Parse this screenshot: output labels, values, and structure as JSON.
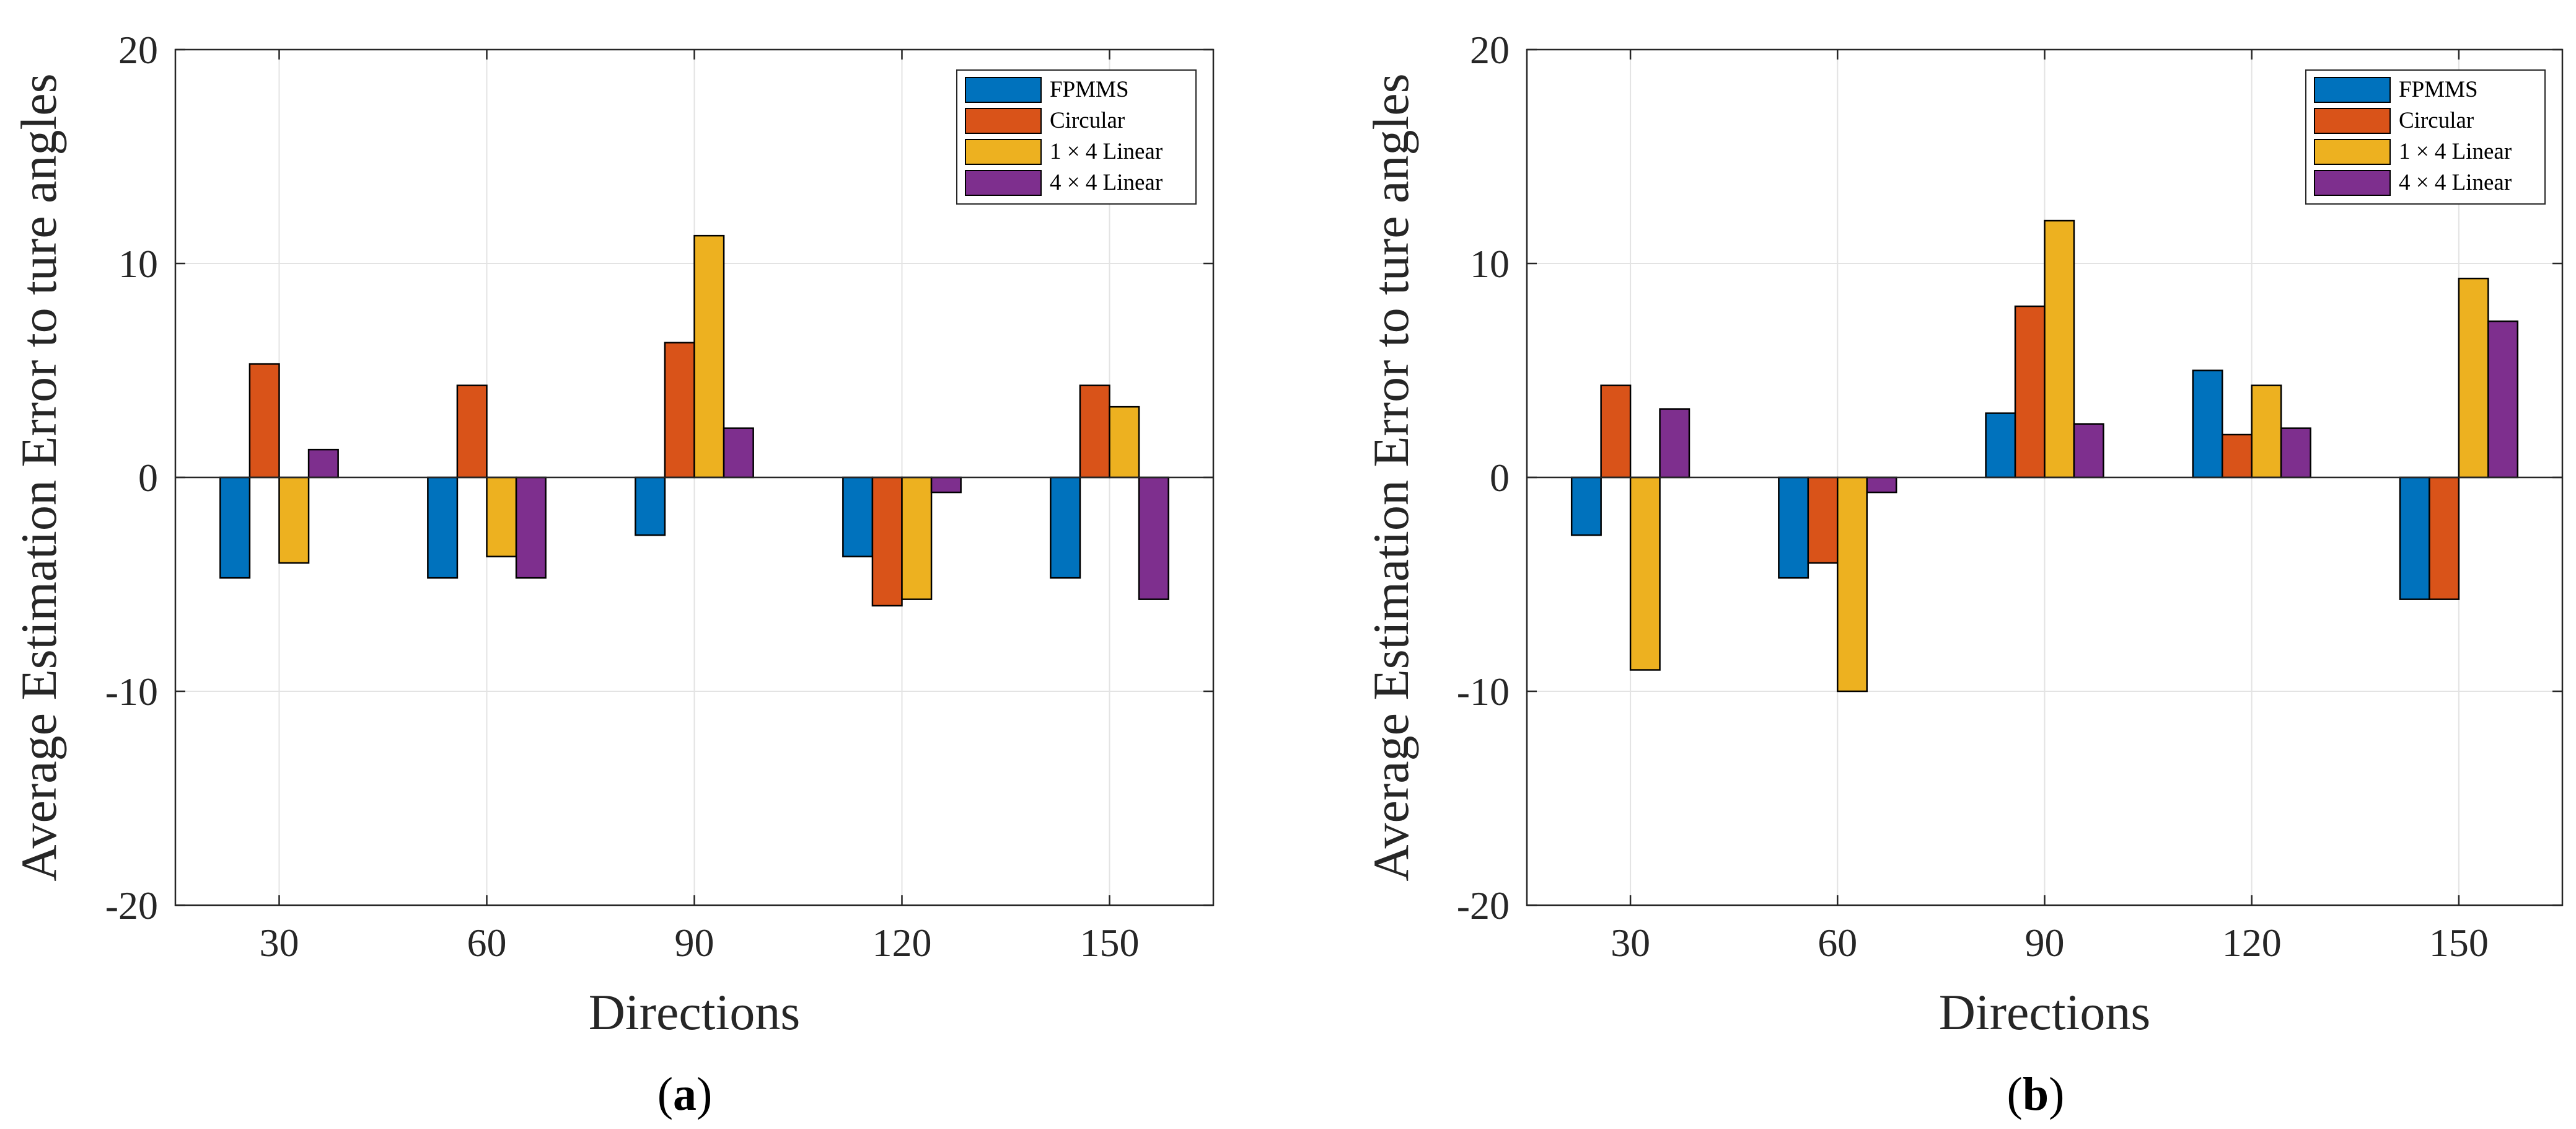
{
  "figure_caption_labels": [
    "a",
    "b"
  ],
  "chart_data": [
    {
      "type": "bar",
      "panel": "a",
      "xlabel": "Directions",
      "ylabel": "Average Estimation Error to ture angles",
      "categories": [
        "30",
        "60",
        "90",
        "120",
        "150"
      ],
      "ylim": [
        -20,
        20
      ],
      "yticks": [
        -20,
        -10,
        0,
        10,
        20
      ],
      "yticklabels": [
        "-20",
        "-10",
        "0",
        "10",
        "20"
      ],
      "grid": true,
      "legend_position": "top-right",
      "series": [
        {
          "name": "FPMMS",
          "color": "#0072BD",
          "values": [
            -4.7,
            -4.7,
            -2.7,
            -3.7,
            -4.7
          ]
        },
        {
          "name": "Circular",
          "color": "#D95319",
          "values": [
            5.3,
            4.3,
            6.3,
            -6.0,
            4.3
          ]
        },
        {
          "name": "1 × 4 Linear",
          "color": "#EDB120",
          "values": [
            -4.0,
            -3.7,
            11.3,
            -5.7,
            3.3
          ]
        },
        {
          "name": "4 × 4 Linear",
          "color": "#7E2F8E",
          "values": [
            1.3,
            -4.7,
            2.3,
            -0.7,
            -5.7
          ]
        }
      ]
    },
    {
      "type": "bar",
      "panel": "b",
      "xlabel": "Directions",
      "ylabel": "Average Estimation Error to ture angles",
      "categories": [
        "30",
        "60",
        "90",
        "120",
        "150"
      ],
      "ylim": [
        -20,
        20
      ],
      "yticks": [
        -20,
        -10,
        0,
        10,
        20
      ],
      "yticklabels": [
        "-20",
        "-10",
        "0",
        "10",
        "20"
      ],
      "grid": true,
      "legend_position": "top-right",
      "series": [
        {
          "name": "FPMMS",
          "color": "#0072BD",
          "values": [
            -2.7,
            -4.7,
            3.0,
            5.0,
            -5.7
          ]
        },
        {
          "name": "Circular",
          "color": "#D95319",
          "values": [
            4.3,
            -4.0,
            8.0,
            2.0,
            -5.7
          ]
        },
        {
          "name": "1 × 4 Linear",
          "color": "#EDB120",
          "values": [
            -9.0,
            -10.0,
            12.0,
            4.3,
            9.3
          ]
        },
        {
          "name": "4 × 4 Linear",
          "color": "#7E2F8E",
          "values": [
            3.2,
            -0.7,
            2.5,
            2.3,
            7.3
          ]
        }
      ]
    }
  ]
}
